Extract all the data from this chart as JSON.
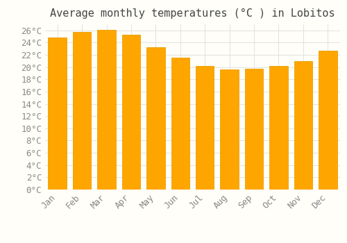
{
  "title": "Average monthly temperatures (°C ) in Lobitos",
  "months": [
    "Jan",
    "Feb",
    "Mar",
    "Apr",
    "May",
    "Jun",
    "Jul",
    "Aug",
    "Sep",
    "Oct",
    "Nov",
    "Dec"
  ],
  "values": [
    24.8,
    25.8,
    26.1,
    25.3,
    23.3,
    21.5,
    20.2,
    19.6,
    19.7,
    20.2,
    21.0,
    22.7
  ],
  "bar_color": "#FFA500",
  "bar_edge_color": "#E8A000",
  "background_color": "#FFFEF8",
  "grid_color": "#DDDDDD",
  "ylim": [
    0,
    27
  ],
  "ytick_step": 2,
  "title_fontsize": 11,
  "tick_fontsize": 9,
  "font_family": "monospace"
}
